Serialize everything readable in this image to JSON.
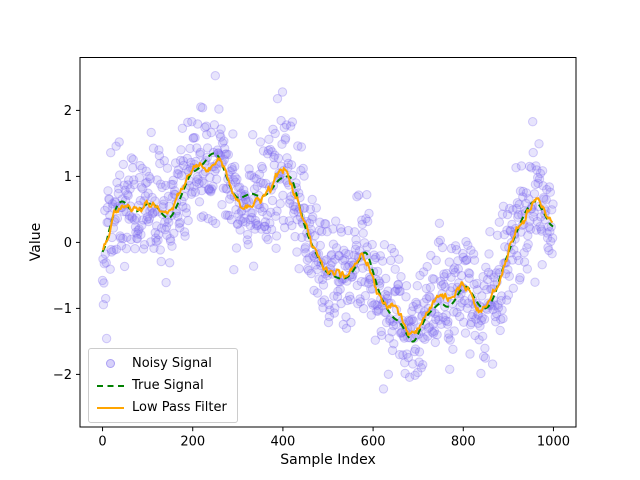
{
  "chart_data": {
    "type": "scatter",
    "title": "",
    "xlabel": "Sample Index",
    "ylabel": "Value",
    "xlim": [
      -50,
      1050
    ],
    "ylim": [
      -2.8,
      2.8
    ],
    "xticks": [
      0,
      200,
      400,
      600,
      800,
      1000
    ],
    "yticks": [
      -2,
      -1,
      0,
      1,
      2
    ],
    "grid": false,
    "legend_position": "lower left",
    "series": [
      {
        "name": "Noisy Signal",
        "type": "scatter",
        "color": "#7b68ee",
        "alpha": 0.18,
        "marker_radius": 4.2,
        "n_points": 1000,
        "noise_sigma": 0.45,
        "seed": 42,
        "generated_from": "true_signal_plus_gaussian_noise"
      },
      {
        "name": "True Signal",
        "type": "line",
        "style": "dashed",
        "color": "#008000",
        "linewidth": 2,
        "keypoints": [
          [
            0,
            -0.25
          ],
          [
            15,
            0.2
          ],
          [
            30,
            0.55
          ],
          [
            45,
            0.65
          ],
          [
            60,
            0.5
          ],
          [
            75,
            0.45
          ],
          [
            90,
            0.55
          ],
          [
            105,
            0.6
          ],
          [
            120,
            0.55
          ],
          [
            135,
            0.4
          ],
          [
            150,
            0.35
          ],
          [
            165,
            0.55
          ],
          [
            180,
            0.8
          ],
          [
            195,
            1.05
          ],
          [
            210,
            1.1
          ],
          [
            225,
            1.2
          ],
          [
            240,
            1.35
          ],
          [
            255,
            1.35
          ],
          [
            270,
            1.1
          ],
          [
            285,
            0.8
          ],
          [
            300,
            0.65
          ],
          [
            315,
            0.7
          ],
          [
            330,
            0.75
          ],
          [
            345,
            0.7
          ],
          [
            360,
            0.7
          ],
          [
            375,
            0.8
          ],
          [
            390,
            0.95
          ],
          [
            405,
            1.0
          ],
          [
            420,
            1.0
          ],
          [
            435,
            0.6
          ],
          [
            450,
            0.2
          ],
          [
            465,
            -0.05
          ],
          [
            480,
            -0.25
          ],
          [
            495,
            -0.45
          ],
          [
            510,
            -0.5
          ],
          [
            525,
            -0.55
          ],
          [
            540,
            -0.55
          ],
          [
            555,
            -0.45
          ],
          [
            570,
            -0.25
          ],
          [
            585,
            -0.1
          ],
          [
            600,
            -0.45
          ],
          [
            615,
            -0.8
          ],
          [
            630,
            -1.0
          ],
          [
            645,
            -1.15
          ],
          [
            660,
            -1.2
          ],
          [
            675,
            -1.4
          ],
          [
            690,
            -1.55
          ],
          [
            705,
            -1.3
          ],
          [
            720,
            -1.1
          ],
          [
            735,
            -1.0
          ],
          [
            750,
            -0.9
          ],
          [
            765,
            -1.0
          ],
          [
            780,
            -0.9
          ],
          [
            795,
            -0.7
          ],
          [
            810,
            -0.65
          ],
          [
            825,
            -0.85
          ],
          [
            840,
            -1.0
          ],
          [
            855,
            -1.0
          ],
          [
            870,
            -0.8
          ],
          [
            885,
            -0.45
          ],
          [
            900,
            -0.15
          ],
          [
            915,
            0.1
          ],
          [
            930,
            0.35
          ],
          [
            945,
            0.55
          ],
          [
            960,
            0.65
          ],
          [
            975,
            0.5
          ],
          [
            990,
            0.3
          ],
          [
            999,
            0.2
          ]
        ]
      },
      {
        "name": "Low Pass Filter",
        "type": "line",
        "style": "solid",
        "color": "#ffa500",
        "linewidth": 2,
        "generated_from": "moving_average_of_noisy_signal",
        "window": 31
      }
    ]
  }
}
